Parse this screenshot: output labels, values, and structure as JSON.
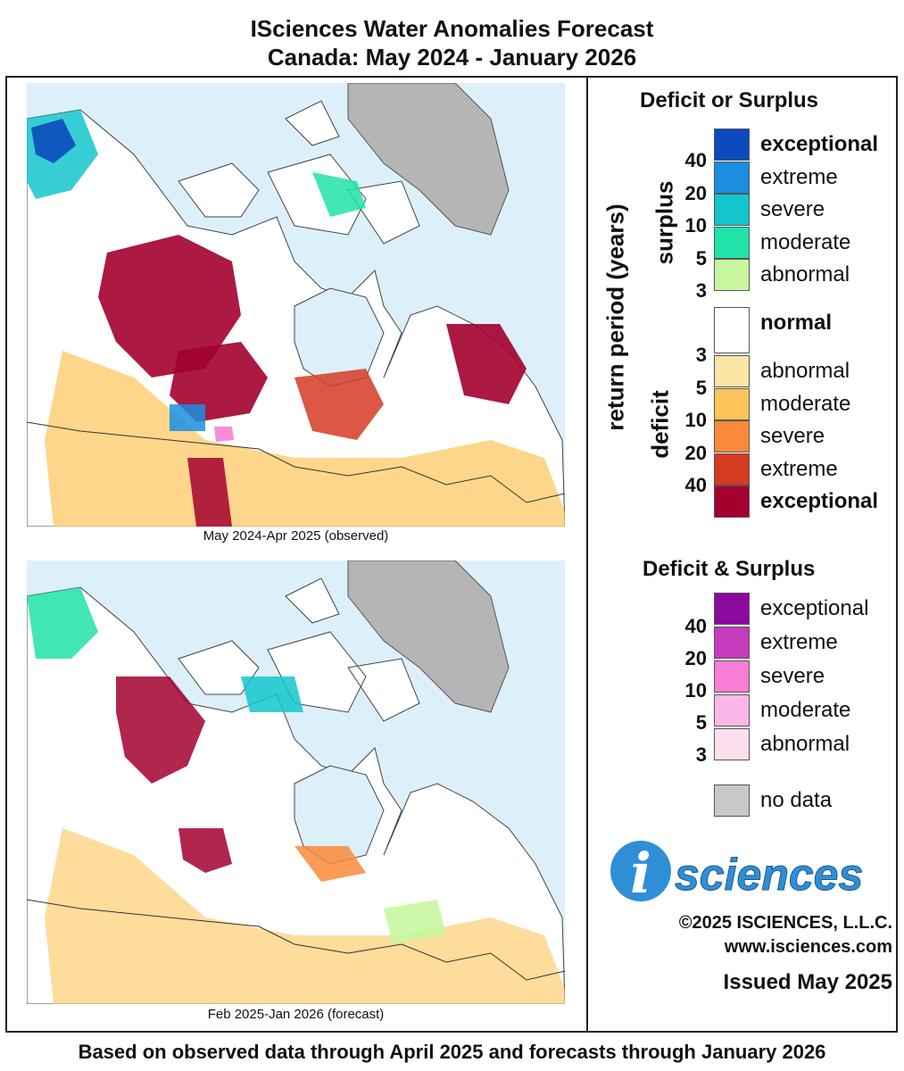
{
  "header": {
    "title_line1": "ISciences Water Anomalies Forecast",
    "title_line2": "Canada: May 2024 - January 2026"
  },
  "maps": [
    {
      "caption": "May 2024-Apr 2025 (observed)"
    },
    {
      "caption": "Feb 2025-Jan 2026 (forecast)"
    }
  ],
  "legend": {
    "title": "Deficit or Surplus",
    "axis_label": "return period (years)",
    "surplus_label": "surplus",
    "deficit_label": "deficit",
    "surplus_items": [
      {
        "label": "exceptional",
        "color": "#0b4bbd"
      },
      {
        "label": "extreme",
        "color": "#1a8fe0"
      },
      {
        "label": "severe",
        "color": "#13c5cc"
      },
      {
        "label": "moderate",
        "color": "#1fe3a8"
      },
      {
        "label": "abnormal",
        "color": "#c8f7a0"
      }
    ],
    "normal_label": "normal",
    "deficit_items": [
      {
        "label": "abnormal",
        "color": "#fbe6a6"
      },
      {
        "label": "moderate",
        "color": "#fcc45a"
      },
      {
        "label": "severe",
        "color": "#f98a3a"
      },
      {
        "label": "extreme",
        "color": "#d63b24"
      },
      {
        "label": "exceptional",
        "color": "#a3002f"
      }
    ],
    "surplus_ticks": [
      "40",
      "20",
      "10",
      "5",
      "3"
    ],
    "deficit_ticks": [
      "3",
      "5",
      "10",
      "20",
      "40"
    ],
    "combo_title": "Deficit & Surplus",
    "combo_items": [
      {
        "label": "exceptional",
        "color": "#8c0a9e"
      },
      {
        "label": "extreme",
        "color": "#c43bbc"
      },
      {
        "label": "severe",
        "color": "#f77ed4"
      },
      {
        "label": "moderate",
        "color": "#fbb8e6"
      },
      {
        "label": "abnormal",
        "color": "#fde0ef"
      }
    ],
    "combo_ticks": [
      "40",
      "20",
      "10",
      "5",
      "3"
    ],
    "nodata_label": "no data",
    "nodata_color": "#c8c8c8"
  },
  "branding": {
    "logo_letter": "i",
    "logo_text": "sciences",
    "copyright": "©2025 ISCIENCES, L.L.C.",
    "website": "www.isciences.com",
    "issued": "Issued May 2025"
  },
  "footer": "Based on observed data through April 2025 and forecasts through January 2026"
}
